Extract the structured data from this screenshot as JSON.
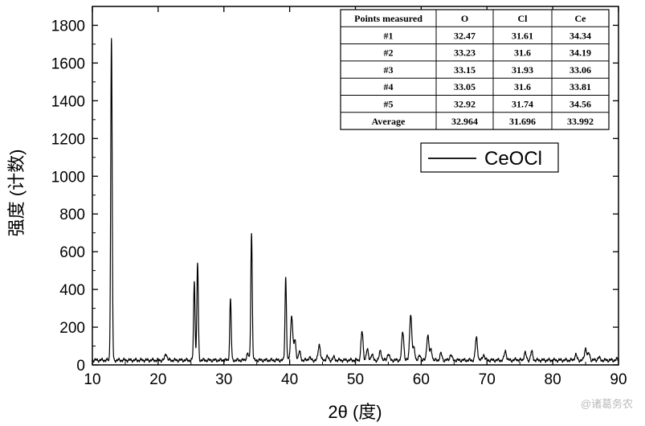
{
  "chart_data": {
    "type": "line",
    "xlabel": "2θ (度)",
    "ylabel": "强度 (计数)",
    "xlim": [
      10,
      90
    ],
    "ylim": [
      0,
      1900
    ],
    "xticks": [
      10,
      20,
      30,
      40,
      50,
      60,
      70,
      80,
      90
    ],
    "yticks": [
      0,
      200,
      400,
      600,
      800,
      1000,
      1200,
      1400,
      1600,
      1800
    ],
    "grid": false,
    "legend": {
      "placement": "center-right",
      "entries": [
        "CeOCl"
      ]
    },
    "series": [
      {
        "name": "CeOCl",
        "color": "#000000",
        "baseline": 25,
        "peaks": [
          [
            12.9,
            1730
          ],
          [
            21.2,
            60
          ],
          [
            25.5,
            440
          ],
          [
            26.0,
            540
          ],
          [
            31.0,
            350
          ],
          [
            33.6,
            60
          ],
          [
            34.2,
            700
          ],
          [
            39.4,
            465
          ],
          [
            40.3,
            265
          ],
          [
            40.8,
            130
          ],
          [
            41.5,
            70
          ],
          [
            43.0,
            40
          ],
          [
            44.5,
            110
          ],
          [
            45.7,
            45
          ],
          [
            46.7,
            40
          ],
          [
            51.0,
            175
          ],
          [
            51.8,
            80
          ],
          [
            52.5,
            55
          ],
          [
            53.8,
            75
          ],
          [
            55.0,
            60
          ],
          [
            57.2,
            175
          ],
          [
            58.4,
            270
          ],
          [
            58.9,
            90
          ],
          [
            59.8,
            50
          ],
          [
            61.0,
            160
          ],
          [
            61.5,
            80
          ],
          [
            63.0,
            60
          ],
          [
            64.5,
            55
          ],
          [
            68.4,
            145
          ],
          [
            69.5,
            55
          ],
          [
            72.8,
            75
          ],
          [
            74.5,
            30
          ],
          [
            75.8,
            65
          ],
          [
            76.8,
            70
          ],
          [
            83.5,
            55
          ],
          [
            85.0,
            90
          ],
          [
            85.5,
            60
          ],
          [
            87.0,
            40
          ],
          [
            89.8,
            30
          ]
        ]
      }
    ]
  },
  "table": {
    "headers": [
      "Points measured",
      "O",
      "Cl",
      "Ce"
    ],
    "rows": [
      [
        "#1",
        "32.47",
        "31.61",
        "34.34"
      ],
      [
        "#2",
        "33.23",
        "31.6",
        "34.19"
      ],
      [
        "#3",
        "33.15",
        "31.93",
        "33.06"
      ],
      [
        "#4",
        "33.05",
        "31.6",
        "33.81"
      ],
      [
        "#5",
        "32.92",
        "31.74",
        "34.56"
      ],
      [
        "Average",
        "32.964",
        "31.696",
        "33.992"
      ]
    ]
  },
  "watermark": "@诸葛务农"
}
